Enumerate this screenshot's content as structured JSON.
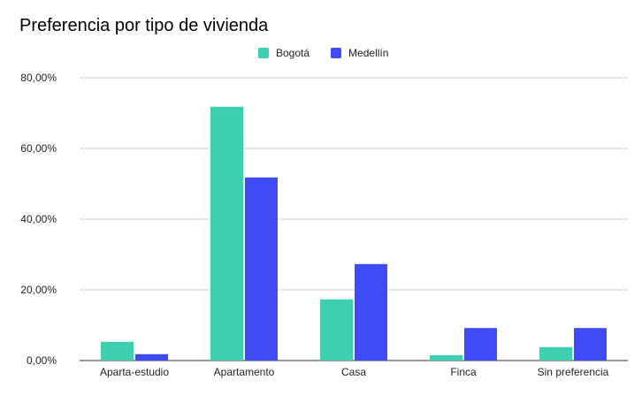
{
  "chart_data": {
    "type": "bar",
    "title": "Preferencia por tipo de vivienda",
    "xlabel": "",
    "ylabel": "",
    "categories": [
      "Aparta-estudio",
      "Apartamento",
      "Casa",
      "Finca",
      "Sin preferencia"
    ],
    "series": [
      {
        "name": "Bogotá",
        "color": "#3dcfb0",
        "values": [
          5.3,
          71.8,
          17.3,
          1.5,
          3.8
        ]
      },
      {
        "name": "Medellín",
        "color": "#3f4cf5",
        "values": [
          1.8,
          51.8,
          27.3,
          9.2,
          9.2
        ]
      }
    ],
    "ylim": [
      0,
      80
    ],
    "yticks": [
      {
        "value": 0,
        "label": "0,00%"
      },
      {
        "value": 20,
        "label": "20,00%"
      },
      {
        "value": 40,
        "label": "40,00%"
      },
      {
        "value": 60,
        "label": "60,00%"
      },
      {
        "value": 80,
        "label": "80,00%"
      }
    ],
    "legend_position": "top-center",
    "grid": true,
    "gridline_color": "#cfcfcf",
    "axis_color": "#333333"
  }
}
